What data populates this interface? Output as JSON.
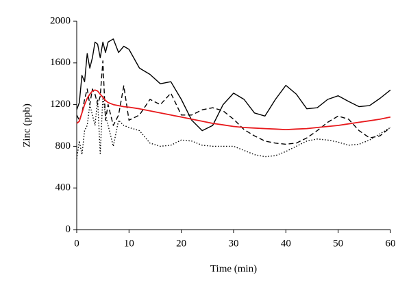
{
  "chart_data": {
    "type": "line",
    "xlabel": "Time (min)",
    "ylabel": "Zinc (ppb)",
    "x": [
      0,
      0.5,
      1,
      1.5,
      2,
      2.5,
      3,
      3.5,
      4,
      4.5,
      5,
      5.5,
      6,
      7,
      8,
      9,
      10,
      12,
      14,
      16,
      18,
      20,
      22,
      24,
      26,
      28,
      30,
      32,
      34,
      36,
      38,
      40,
      42,
      44,
      46,
      48,
      50,
      52,
      54,
      56,
      58,
      60
    ],
    "series": [
      {
        "color": "#000000",
        "dash": "solid",
        "values": [
          1150,
          1220,
          1480,
          1420,
          1690,
          1550,
          1650,
          1800,
          1780,
          1650,
          1800,
          1700,
          1800,
          1830,
          1700,
          1760,
          1730,
          1550,
          1490,
          1400,
          1420,
          1250,
          1050,
          950,
          1000,
          1200,
          1310,
          1250,
          1120,
          1090,
          1250,
          1385,
          1300,
          1160,
          1170,
          1250,
          1285,
          1230,
          1180,
          1190,
          1260,
          1340
        ]
      },
      {
        "color": "#000000",
        "dash": "dashed",
        "values": [
          1100,
          1050,
          1120,
          1250,
          1350,
          1200,
          1350,
          1300,
          1200,
          1280,
          1620,
          1050,
          1200,
          1000,
          1100,
          1380,
          1050,
          1100,
          1250,
          1200,
          1310,
          1100,
          1100,
          1150,
          1170,
          1140,
          1060,
          960,
          900,
          850,
          830,
          820,
          830,
          880,
          950,
          1030,
          1090,
          1060,
          950,
          880,
          900,
          980
        ]
      },
      {
        "color": "#000000",
        "dash": "dotted",
        "values": [
          680,
          850,
          720,
          950,
          1000,
          1200,
          1100,
          1000,
          1250,
          730,
          1280,
          1100,
          1000,
          800,
          1050,
          1000,
          980,
          950,
          830,
          800,
          810,
          860,
          850,
          810,
          800,
          800,
          800,
          760,
          720,
          700,
          710,
          750,
          800,
          850,
          870,
          860,
          840,
          810,
          820,
          860,
          920,
          980
        ]
      },
      {
        "color": "#e8191c",
        "dash": "solid",
        "values": [
          1020,
          1040,
          1120,
          1200,
          1260,
          1300,
          1330,
          1340,
          1330,
          1300,
          1270,
          1240,
          1220,
          1200,
          1190,
          1180,
          1175,
          1160,
          1140,
          1120,
          1100,
          1080,
          1060,
          1040,
          1020,
          1005,
          990,
          980,
          975,
          970,
          965,
          960,
          965,
          970,
          980,
          990,
          1000,
          1015,
          1030,
          1045,
          1060,
          1080
        ]
      }
    ],
    "xlim": [
      0,
      60
    ],
    "xticks": [
      0,
      10,
      20,
      30,
      40,
      50,
      60
    ],
    "ylim": [
      0,
      2000
    ],
    "yticks": [
      0,
      400,
      800,
      1200,
      1600,
      2000
    ]
  }
}
